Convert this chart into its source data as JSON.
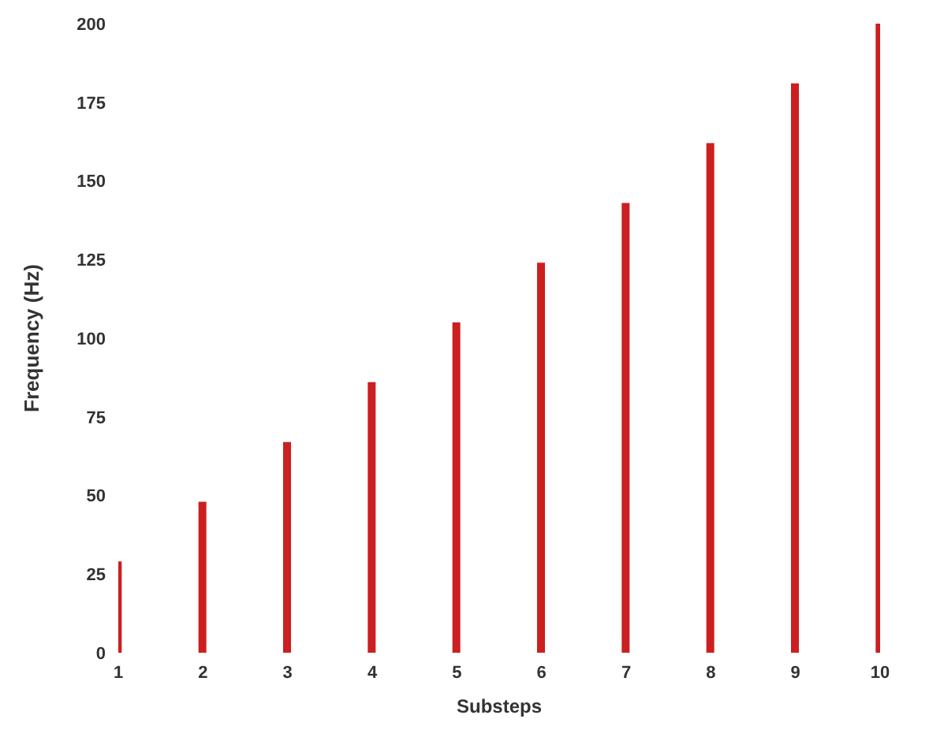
{
  "chart_data": {
    "type": "bar",
    "xlabel": "Substeps",
    "ylabel": "Frequency (Hz)",
    "x": [
      1,
      2,
      3,
      4,
      5,
      6,
      7,
      8,
      9,
      10
    ],
    "values": [
      29,
      48,
      67,
      86,
      105,
      124,
      143,
      162,
      181,
      200
    ],
    "color": "#cc1f1f",
    "xlim": [
      1,
      10
    ],
    "xticks": [
      1,
      2,
      3,
      4,
      5,
      6,
      7,
      8,
      9,
      10
    ],
    "ylim": [
      0,
      200
    ],
    "yticks": [
      0,
      25,
      50,
      75,
      100,
      125,
      150,
      175,
      200
    ],
    "grid": false,
    "legend": false
  }
}
